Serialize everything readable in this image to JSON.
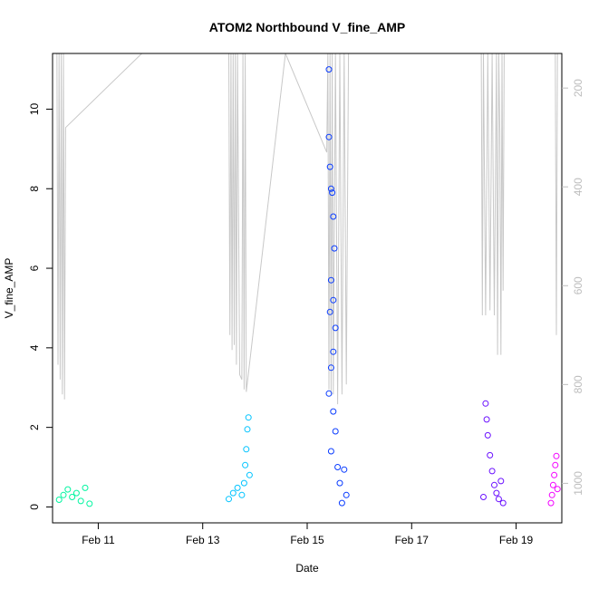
{
  "chart_data": {
    "type": "scatter",
    "title": "ATOM2 Northbound V_fine_AMP",
    "xlabel": "Date",
    "ylabel": "V_fine_AMP",
    "x_ticks": [
      "Feb 11",
      "Feb 13",
      "Feb 15",
      "Feb 17",
      "Feb 19"
    ],
    "y_ticks": [
      "0",
      "2",
      "4",
      "6",
      "8",
      "10"
    ],
    "y_ticks_right": [
      "200",
      "400",
      "600",
      "800",
      "1000"
    ],
    "ylim": [
      -0.4,
      11.4
    ],
    "ylim_right_reversed": [
      1080,
      130
    ],
    "xlim": [
      "Feb 10 03:00",
      "Feb 19 21:00"
    ],
    "grid": false,
    "series": [
      {
        "color": "#00f5a0",
        "points": [
          [
            "Feb 10 06:00",
            0.18
          ],
          [
            "Feb 10 08:00",
            0.3
          ],
          [
            "Feb 10 10:00",
            0.44
          ],
          [
            "Feb 10 12:00",
            0.25
          ],
          [
            "Feb 10 14:00",
            0.35
          ],
          [
            "Feb 10 16:00",
            0.15
          ],
          [
            "Feb 10 18:00",
            0.48
          ],
          [
            "Feb 10 20:00",
            0.08
          ]
        ]
      },
      {
        "color": "#00c3ff",
        "points": [
          [
            "Feb 13 12:00",
            0.2
          ],
          [
            "Feb 13 14:00",
            0.35
          ],
          [
            "Feb 13 16:00",
            0.48
          ],
          [
            "Feb 13 18:00",
            0.3
          ],
          [
            "Feb 13 19:00",
            0.6
          ],
          [
            "Feb 13 19:30",
            1.05
          ],
          [
            "Feb 13 20:00",
            1.45
          ],
          [
            "Feb 13 20:30",
            1.95
          ],
          [
            "Feb 13 21:00",
            2.25
          ],
          [
            "Feb 13 21:30",
            0.8
          ]
        ]
      },
      {
        "color": "#0a3cff",
        "points": [
          [
            "Feb 15 10:00",
            11.0
          ],
          [
            "Feb 15 10:00",
            9.3
          ],
          [
            "Feb 15 10:30",
            8.55
          ],
          [
            "Feb 15 11:00",
            8.0
          ],
          [
            "Feb 15 11:30",
            7.9
          ],
          [
            "Feb 15 12:00",
            7.3
          ],
          [
            "Feb 15 12:30",
            6.5
          ],
          [
            "Feb 15 11:00",
            5.7
          ],
          [
            "Feb 15 12:00",
            5.2
          ],
          [
            "Feb 15 10:30",
            4.9
          ],
          [
            "Feb 15 13:00",
            4.5
          ],
          [
            "Feb 15 12:00",
            3.9
          ],
          [
            "Feb 15 11:00",
            3.5
          ],
          [
            "Feb 15 10:00",
            2.85
          ],
          [
            "Feb 15 12:00",
            2.4
          ],
          [
            "Feb 15 13:00",
            1.9
          ],
          [
            "Feb 15 11:00",
            1.4
          ],
          [
            "Feb 15 14:00",
            1.0
          ],
          [
            "Feb 15 15:00",
            0.6
          ],
          [
            "Feb 15 17:00",
            0.94
          ],
          [
            "Feb 15 18:00",
            0.3
          ],
          [
            "Feb 15 16:00",
            0.1
          ]
        ]
      },
      {
        "color": "#6a10ff",
        "points": [
          [
            "Feb 18 09:00",
            0.25
          ],
          [
            "Feb 18 10:00",
            2.6
          ],
          [
            "Feb 18 10:30",
            2.2
          ],
          [
            "Feb 18 11:00",
            1.8
          ],
          [
            "Feb 18 12:00",
            1.3
          ],
          [
            "Feb 18 13:00",
            0.9
          ],
          [
            "Feb 18 14:00",
            0.55
          ],
          [
            "Feb 18 15:00",
            0.35
          ],
          [
            "Feb 18 16:00",
            0.2
          ],
          [
            "Feb 18 17:00",
            0.65
          ],
          [
            "Feb 18 18:00",
            0.1
          ]
        ]
      },
      {
        "color": "#f200ff",
        "points": [
          [
            "Feb 19 16:00",
            0.1
          ],
          [
            "Feb 19 16:30",
            0.3
          ],
          [
            "Feb 19 17:00",
            0.55
          ],
          [
            "Feb 19 17:30",
            0.8
          ],
          [
            "Feb 19 18:00",
            1.05
          ],
          [
            "Feb 19 18:30",
            1.28
          ],
          [
            "Feb 19 19:00",
            0.45
          ]
        ]
      }
    ],
    "right_axis_trace": {
      "color": "#c8c8c8",
      "points": [
        [
          "Feb 10 05:00",
          130
        ],
        [
          "Feb 10 05:30",
          760
        ],
        [
          "Feb 10 06:00",
          130
        ],
        [
          "Feb 10 06:30",
          790
        ],
        [
          "Feb 10 07:00",
          130
        ],
        [
          "Feb 10 07:30",
          820
        ],
        [
          "Feb 10 08:00",
          130
        ],
        [
          "Feb 10 08:30",
          830
        ],
        [
          "Feb 10 09:00",
          280
        ],
        [
          "Feb 11 20:00",
          130
        ],
        [
          "Feb 13 12:00",
          130
        ],
        [
          "Feb 13 12:30",
          700
        ],
        [
          "Feb 13 13:00",
          130
        ],
        [
          "Feb 13 13:30",
          730
        ],
        [
          "Feb 13 14:00",
          130
        ],
        [
          "Feb 13 14:30",
          720
        ],
        [
          "Feb 13 15:00",
          130
        ],
        [
          "Feb 13 15:30",
          760
        ],
        [
          "Feb 13 16:00",
          130
        ],
        [
          "Feb 13 17:00",
          780
        ],
        [
          "Feb 13 18:00",
          790
        ],
        [
          "Feb 13 18:30",
          130
        ],
        [
          "Feb 13 19:00",
          810
        ],
        [
          "Feb 13 19:30",
          130
        ],
        [
          "Feb 13 20:00",
          815
        ],
        [
          "Feb 14 14:00",
          130
        ],
        [
          "Feb 15 09:00",
          330
        ],
        [
          "Feb 15 09:30",
          130
        ],
        [
          "Feb 15 10:00",
          810
        ],
        [
          "Feb 15 10:30",
          130
        ],
        [
          "Feb 15 11:00",
          820
        ],
        [
          "Feb 15 11:30",
          130
        ],
        [
          "Feb 15 12:00",
          820
        ],
        [
          "Feb 15 13:00",
          130
        ],
        [
          "Feb 15 14:00",
          840
        ],
        [
          "Feb 15 15:00",
          130
        ],
        [
          "Feb 15 16:00",
          820
        ],
        [
          "Feb 15 17:00",
          130
        ],
        [
          "Feb 15 18:00",
          800
        ],
        [
          "Feb 15 19:00",
          130
        ],
        [
          "Feb 18 08:00",
          130
        ],
        [
          "Feb 18 08:30",
          660
        ],
        [
          "Feb 18 09:00",
          130
        ],
        [
          "Feb 18 10:00",
          660
        ],
        [
          "Feb 18 11:00",
          130
        ],
        [
          "Feb 18 12:00",
          650
        ],
        [
          "Feb 18 13:00",
          130
        ],
        [
          "Feb 18 14:00",
          660
        ],
        [
          "Feb 18 15:00",
          130
        ],
        [
          "Feb 18 15:30",
          740
        ],
        [
          "Feb 18 16:00",
          130
        ],
        [
          "Feb 18 16:30",
          290
        ],
        [
          "Feb 18 17:00",
          740
        ],
        [
          "Feb 18 17:30",
          130
        ],
        [
          "Feb 18 18:00",
          610
        ],
        [
          "Feb 18 18:30",
          130
        ],
        [
          "Feb 19 18:00",
          130
        ],
        [
          "Feb 19 18:30",
          700
        ],
        [
          "Feb 19 19:00",
          130
        ]
      ]
    }
  }
}
